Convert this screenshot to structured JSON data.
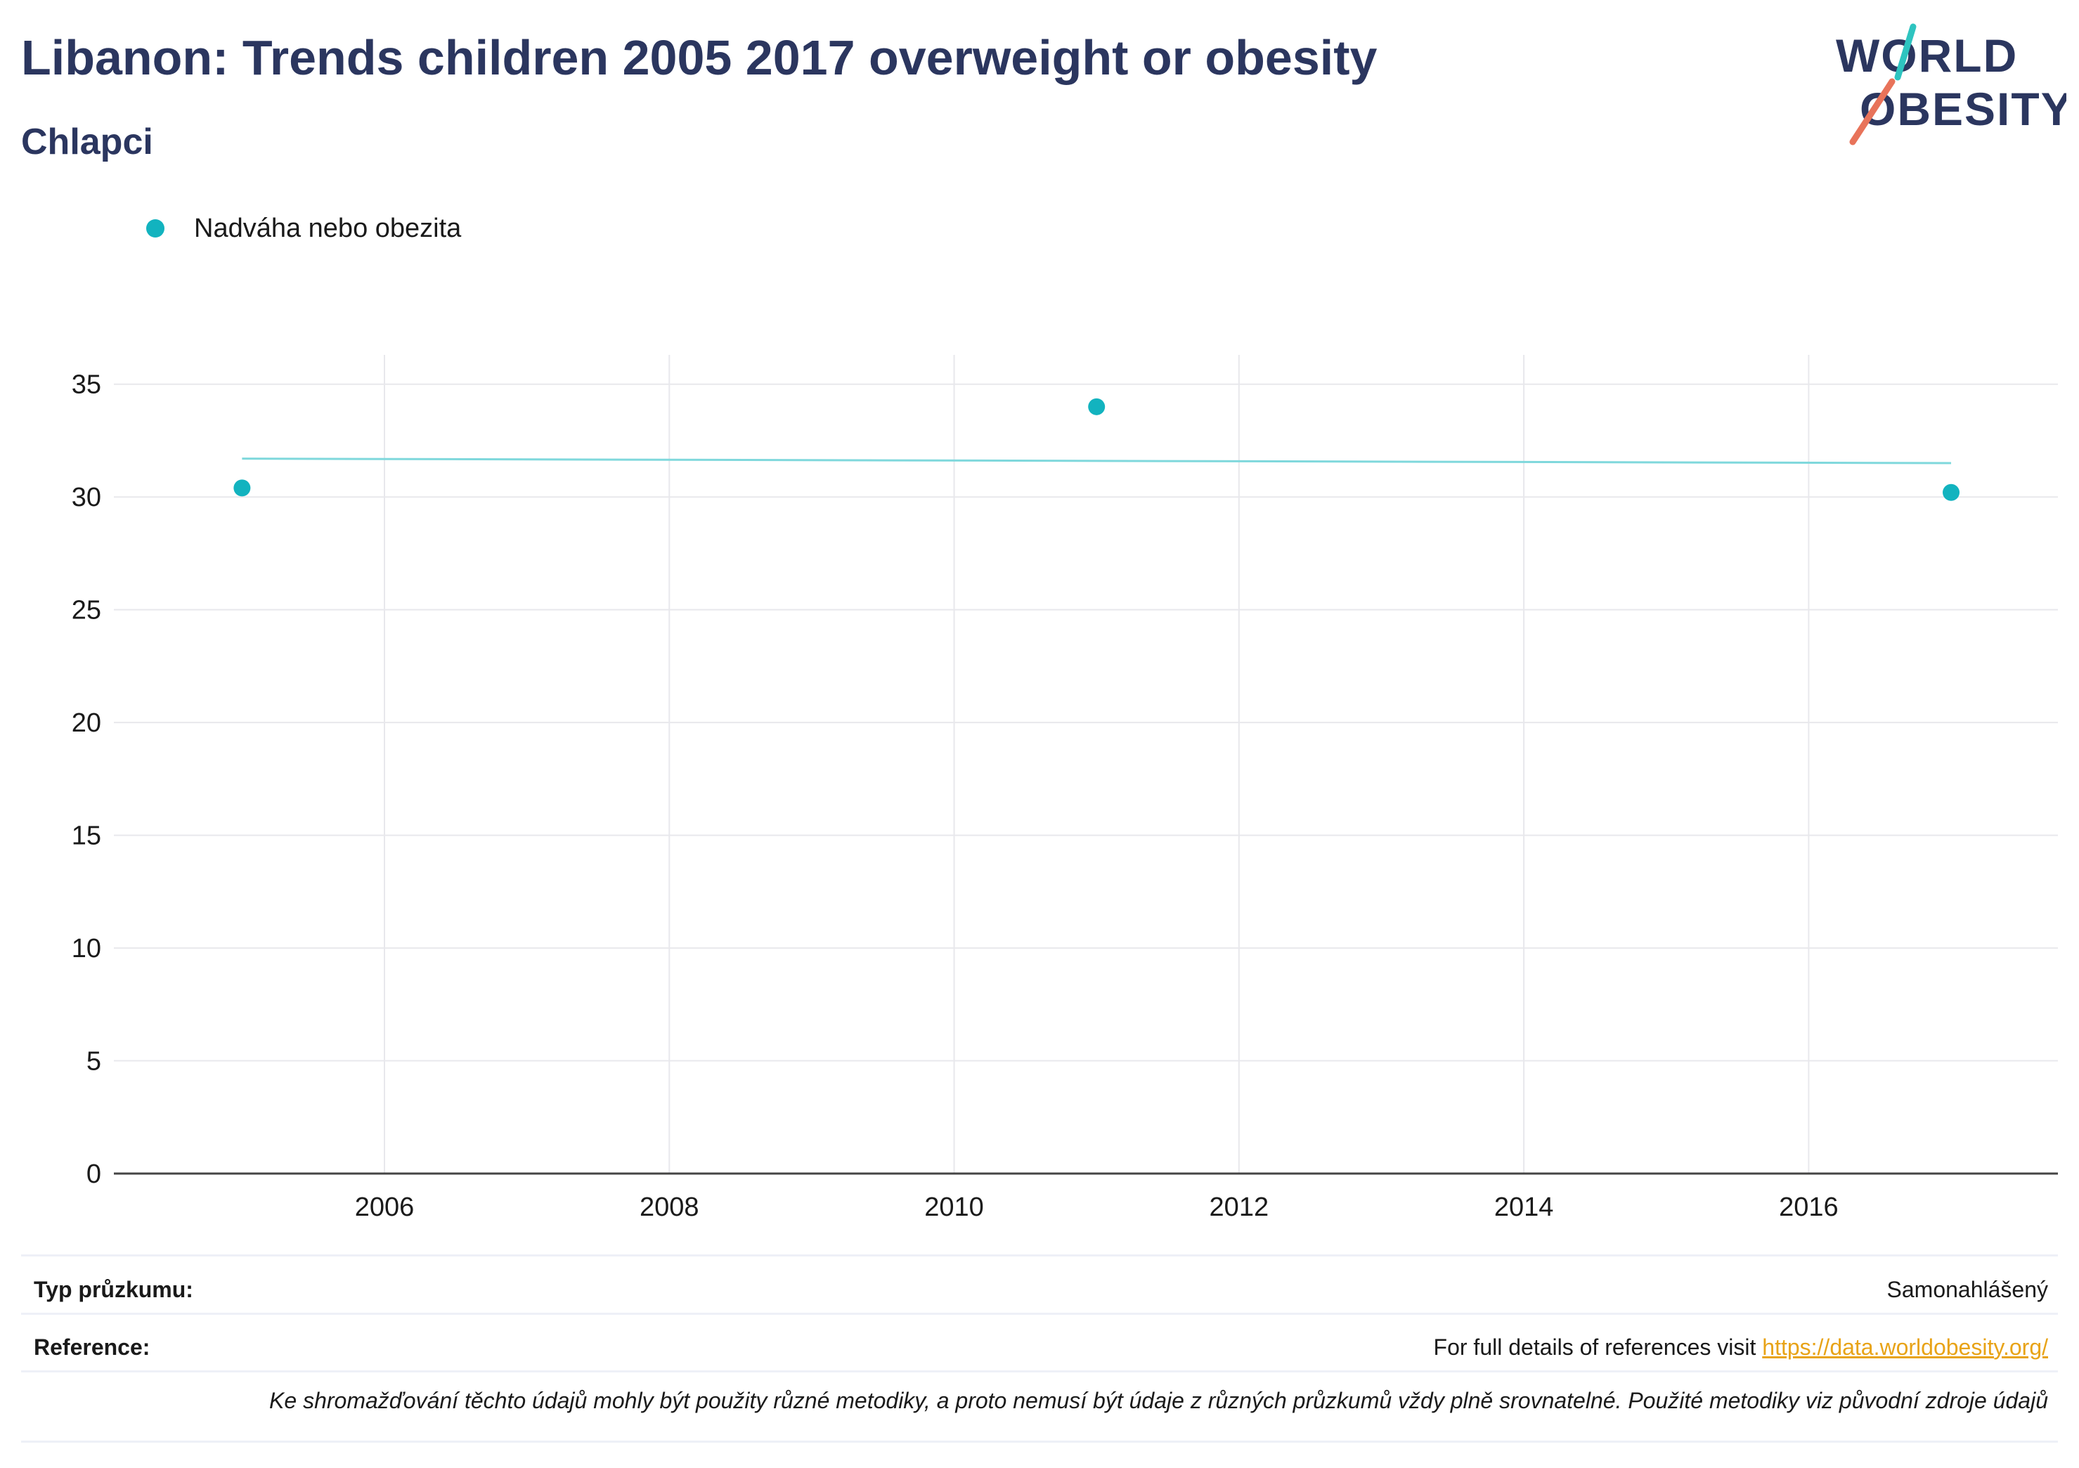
{
  "header": {
    "title": "Libanon: Trends children 2005 2017 overweight or obesity",
    "subtitle": "Chlapci"
  },
  "logo": {
    "line1": "WORLD",
    "line2": "OBESITY",
    "text_color": "#2b365f",
    "accent_teal": "#2ec4c0",
    "accent_coral": "#e8735a"
  },
  "legend": {
    "label": "Nadváha nebo obezita",
    "color": "#12b3bf"
  },
  "chart_data": {
    "type": "scatter",
    "series": [
      {
        "name": "Nadváha nebo obezita",
        "color": "#12b3bf",
        "points": [
          {
            "x": 2005,
            "y": 30.4
          },
          {
            "x": 2011,
            "y": 34.0
          },
          {
            "x": 2017,
            "y": 30.2
          }
        ]
      }
    ],
    "trendline": {
      "color": "#7fd8dc",
      "points": [
        {
          "x": 2005,
          "y": 31.7
        },
        {
          "x": 2017,
          "y": 31.5
        }
      ]
    },
    "xlim": [
      2004.1,
      2017.75
    ],
    "ylim": [
      0,
      36.3
    ],
    "xticks": [
      2006,
      2008,
      2010,
      2012,
      2014,
      2016
    ],
    "yticks": [
      0,
      5,
      10,
      15,
      20,
      25,
      30,
      35
    ],
    "grid": true,
    "legend_position": "top-left"
  },
  "info": {
    "survey_type_label": "Typ průzkumu:",
    "survey_type_value": "Samonahlášený",
    "reference_label": "Reference:",
    "reference_text": "For full details of references visit",
    "reference_link": "https://data.worldobesity.org/",
    "disclaimer": "Ke shromažďování těchto údajů mohly být použity různé metodiky, a proto nemusí být údaje z různých průzkumů vždy plně srovnatelné. Použité metodiky viz původní zdroje údajů"
  }
}
